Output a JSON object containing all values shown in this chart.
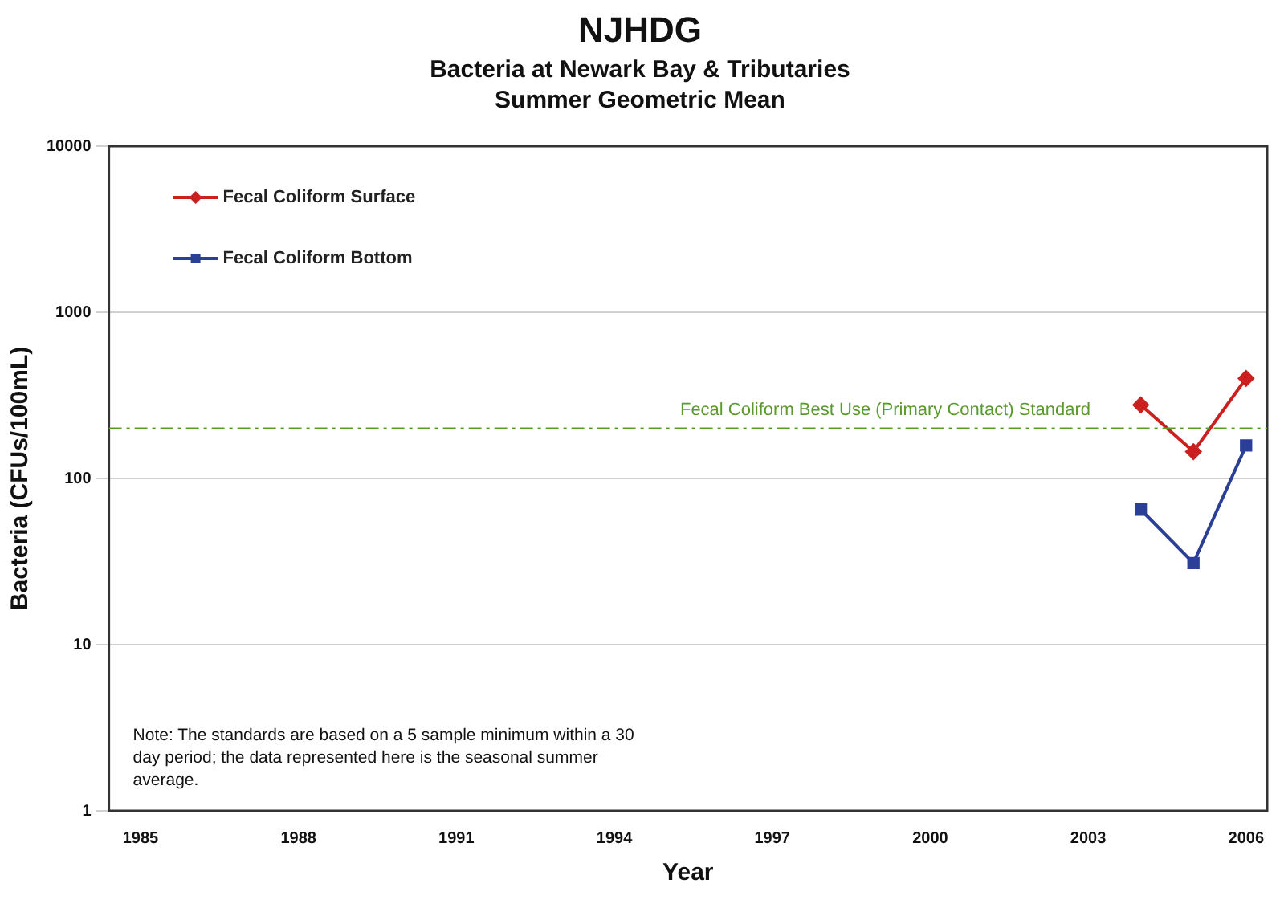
{
  "chart_data": {
    "type": "line",
    "title": "NJHDG",
    "subtitle": "Bacteria at Newark Bay & Tributaries Summer Geometric Mean",
    "xlabel": "Year",
    "ylabel": "Bacteria (CFUs/100mL)",
    "x": [
      2004,
      2005,
      2006
    ],
    "series": [
      {
        "name": "Fecal Coliform Surface",
        "color": "#cc1f1f",
        "marker": "diamond",
        "values": [
          277,
          145,
          400
        ]
      },
      {
        "name": "Fecal Coliform Bottom",
        "color": "#2b3f96",
        "marker": "square",
        "values": [
          65,
          31,
          158
        ]
      }
    ],
    "xlim": [
      1984.4,
      2006.4
    ],
    "xticks": [
      1985,
      1988,
      1991,
      1994,
      1997,
      2000,
      2003,
      2006
    ],
    "ylim": [
      1,
      10000
    ],
    "yticks": [
      1,
      10,
      100,
      1000,
      10000
    ],
    "log": "y",
    "grid": "y",
    "legend": "top left",
    "ref_lines": [
      {
        "axis": "y",
        "value": 200,
        "label": "Fecal Coliform Best Use (Primary Contact) Standard",
        "color": "#5a9a2a",
        "line_style": "dashdot"
      }
    ],
    "annotations": [
      "Note: The standards are based on a 5 sample minimum within a 30 day period; the data represented here is the seasonal summer average."
    ]
  }
}
